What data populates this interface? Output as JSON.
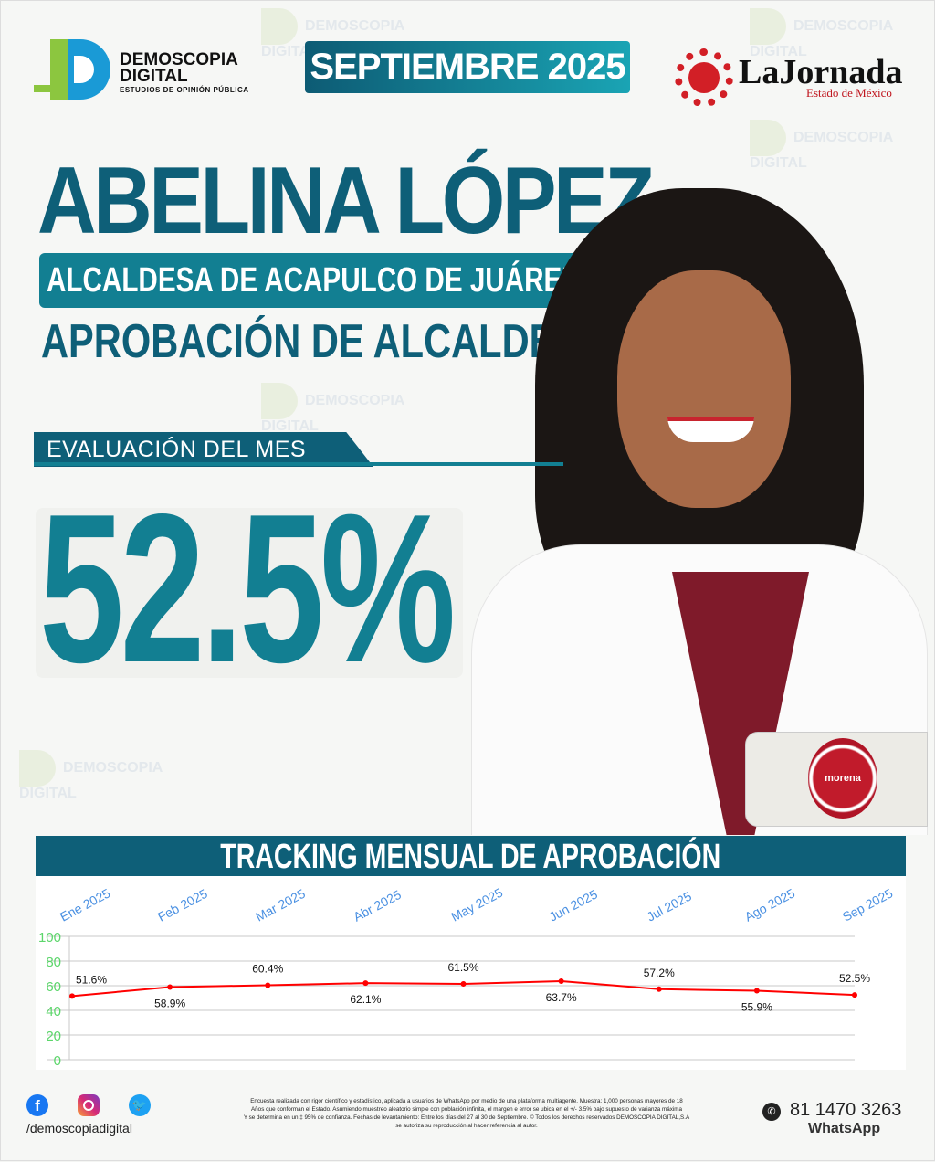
{
  "brand": {
    "name_line1": "DEMOSCOPIA",
    "name_line2": "DIGITAL",
    "tagline": "ESTUDIOS DE OPINIÓN PÚBLICA"
  },
  "header": {
    "period": "SEPTIEMBRE 2025"
  },
  "partner": {
    "name": "LaJornada",
    "subtitle": "Estado de México"
  },
  "hero": {
    "name": "ABELINA LÓPEZ",
    "role": "ALCALDESA DE ACAPULCO DE JUÁREZ",
    "study": "APROBACIÓN DE ALCALDES"
  },
  "evaluation": {
    "label": "EVALUACIÓN DEL MES",
    "value": "52.5%"
  },
  "party": {
    "name": "morena"
  },
  "tracking": {
    "title": "TRACKING MENSUAL DE APROBACIÓN"
  },
  "chart_data": {
    "type": "line",
    "categories": [
      "Ene 2025",
      "Feb 2025",
      "Mar 2025",
      "Abr 2025",
      "May 2025",
      "Jun 2025",
      "Jul 2025",
      "Ago 2025",
      "Sep 2025"
    ],
    "values": [
      51.6,
      58.9,
      60.4,
      62.1,
      61.5,
      63.7,
      57.2,
      55.9,
      52.5
    ],
    "labels": [
      "51.6%",
      "58.9%",
      "60.4%",
      "62.1%",
      "61.5%",
      "63.7%",
      "57.2%",
      "55.9%",
      "52.5%"
    ],
    "yticks": [
      "0",
      "20",
      "40",
      "60",
      "80",
      "100"
    ],
    "ylim": [
      0,
      100
    ],
    "grid": true,
    "line_color": "#ff0000",
    "xtick_color": "#4a90e2",
    "ytick_color": "#5cd66b"
  },
  "footer": {
    "social_handle": "/demoscopiadigital",
    "disclaimer": [
      "Encuesta realizada con rigor científico y estadístico, aplicada a usuarios de WhatsApp por medio de una plataforma multiagente. Muestra: 1,000 personas mayores de 18",
      "Años que conforman el Estado. Asumiendo muestreo aleatorio simple con población infinita, el margen e error se ubica en el +/- 3.5% bajo supuesto de varianza máxima",
      "Y se determina en un ‡ 95% de confianza. Fechas de levantamiento: Entre los días del 27 al 30 de Septiembre. © Todos los derechos reservados DEMOSCOPIA DIGITAL,S.A",
      "se autoriza su reproducción al hacer referencia al autor."
    ],
    "phone": "81 1470 3263",
    "phone_label": "WhatsApp"
  },
  "colors": {
    "teal_dark": "#0e5f78",
    "teal": "#127f92",
    "teal_light": "#1aa6b0"
  }
}
